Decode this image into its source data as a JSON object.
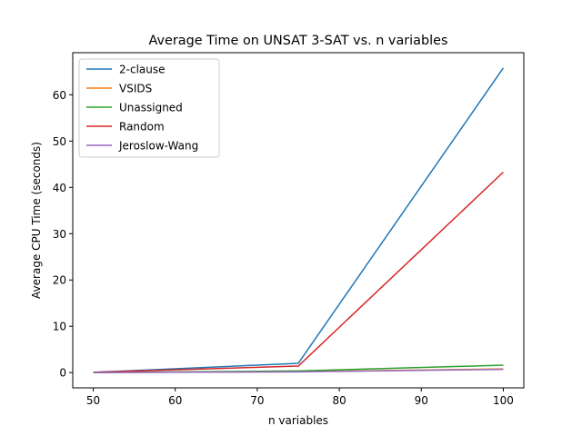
{
  "chart_data": {
    "type": "line",
    "title": "Average Time on UNSAT 3-SAT vs. n variables",
    "xlabel": "n variables",
    "ylabel": "Average CPU Time (seconds)",
    "x": [
      50,
      75,
      100
    ],
    "xlim": [
      47.5,
      102.5
    ],
    "ylim": [
      -3.3,
      69.1
    ],
    "xticks": [
      "50",
      "60",
      "70",
      "80",
      "90",
      "100"
    ],
    "yticks": [
      "0",
      "10",
      "20",
      "30",
      "40",
      "50",
      "60"
    ],
    "legend_position": "top-left",
    "grid": false,
    "series": [
      {
        "name": "2-clause",
        "color": "#1f77b4",
        "values": [
          0.05,
          2.0,
          65.8
        ]
      },
      {
        "name": "VSIDS",
        "color": "#ff7f0e",
        "values": [
          0.02,
          0.2,
          0.8
        ]
      },
      {
        "name": "Unassigned",
        "color": "#2ca02c",
        "values": [
          0.02,
          0.35,
          1.6
        ]
      },
      {
        "name": "Random",
        "color": "#d62728",
        "values": [
          0.05,
          1.4,
          43.3
        ]
      },
      {
        "name": "Jeroslow-Wang",
        "color": "#9467bd",
        "values": [
          0.02,
          0.15,
          0.7
        ]
      }
    ]
  }
}
